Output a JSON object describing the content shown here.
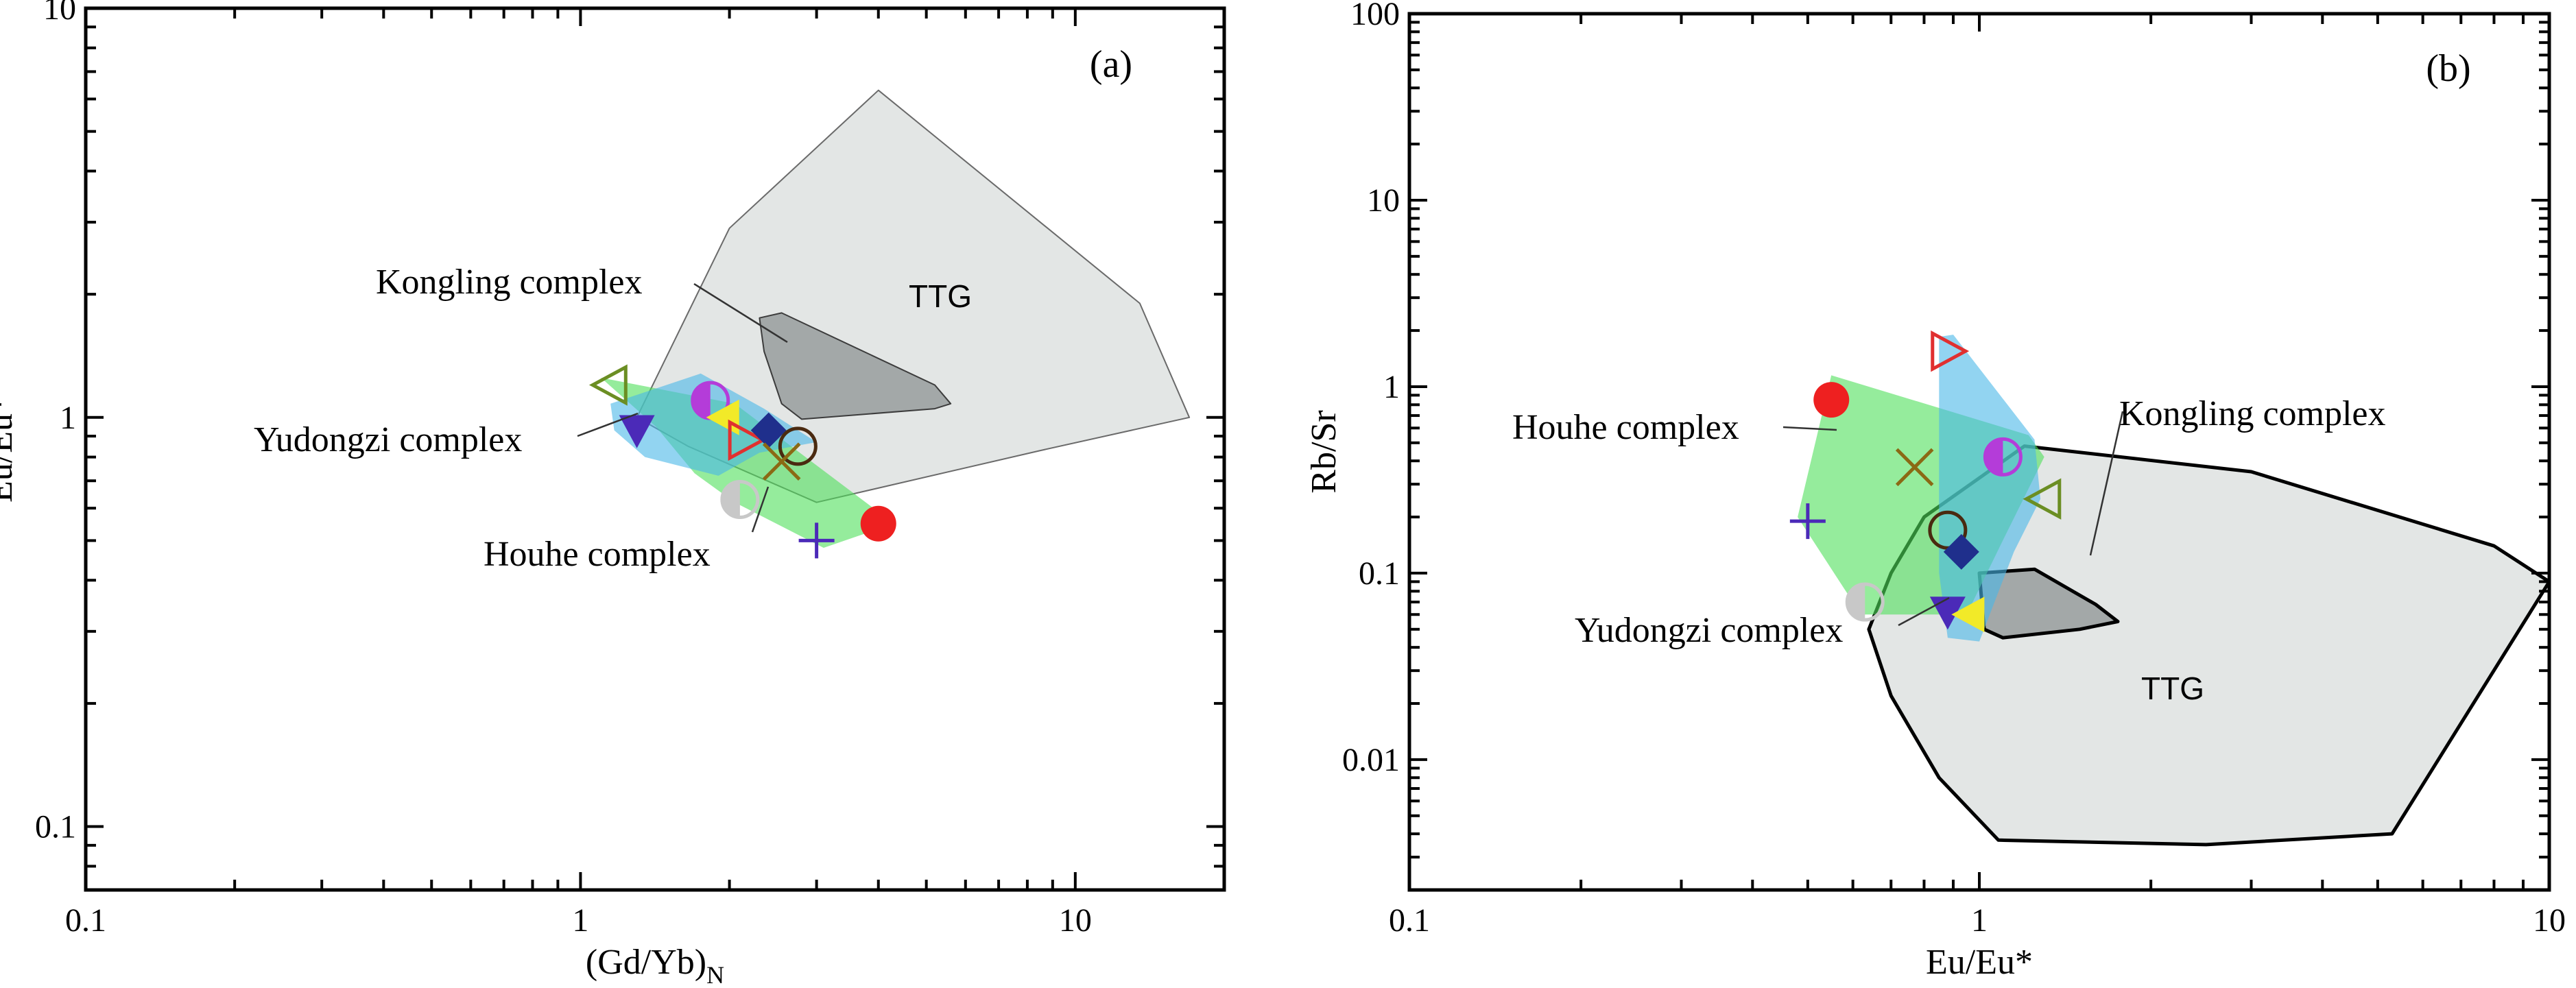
{
  "chart_data": [
    {
      "type": "scatter",
      "panel_label": "(a)",
      "xlabel": "(Gd/Yb)",
      "xlabel_sub": "N",
      "ylabel": "Eu/Eu*",
      "xscale": "log",
      "yscale": "log",
      "xlim": [
        0.1,
        20
      ],
      "ylim": [
        0.07,
        10
      ],
      "x_tick_labels": [
        {
          "value": 0.1,
          "text": "0.1"
        },
        {
          "value": 1,
          "text": "1"
        },
        {
          "value": 10,
          "text": "10"
        }
      ],
      "y_tick_labels": [
        {
          "value": 0.1,
          "text": "0.1"
        },
        {
          "value": 1,
          "text": "1"
        },
        {
          "value": 10,
          "text": "10"
        }
      ],
      "regions": [
        {
          "name": "TTG",
          "label": "TTG",
          "fill": "#e3e6e5",
          "stroke": "#6a6a6a",
          "opacity": 1,
          "points": [
            [
              1.3,
              1.0
            ],
            [
              2.0,
              2.9
            ],
            [
              4.0,
              6.3
            ],
            [
              13.5,
              1.9
            ],
            [
              17,
              1.0
            ],
            [
              8.5,
              0.83
            ],
            [
              3.0,
              0.62
            ],
            [
              1.65,
              0.85
            ]
          ]
        },
        {
          "name": "Kongling complex",
          "label": "Kongling complex",
          "fill": "#a3a8a8",
          "stroke": "#3c3c3c",
          "opacity": 1,
          "points": [
            [
              2.3,
              1.75
            ],
            [
              2.55,
              1.8
            ],
            [
              5.2,
              1.2
            ],
            [
              5.6,
              1.08
            ],
            [
              5.2,
              1.05
            ],
            [
              2.8,
              0.99
            ],
            [
              2.55,
              1.08
            ],
            [
              2.35,
              1.45
            ]
          ]
        },
        {
          "name": "Houhe complex",
          "label": "Houhe complex",
          "fill": "#4fe05a",
          "stroke": "none",
          "opacity": 0.6,
          "points": [
            [
              1.1,
              1.25
            ],
            [
              2.05,
              1.08
            ],
            [
              4.3,
              0.55
            ],
            [
              3.1,
              0.48
            ],
            [
              2.05,
              0.62
            ],
            [
              1.7,
              0.73
            ],
            [
              1.42,
              0.95
            ]
          ]
        },
        {
          "name": "Yudongzi complex",
          "label": "Yudongzi complex",
          "fill": "#4ab8e8",
          "stroke": "none",
          "opacity": 0.6,
          "points": [
            [
              1.15,
              1.08
            ],
            [
              1.75,
              1.28
            ],
            [
              2.35,
              1.05
            ],
            [
              3.0,
              0.87
            ],
            [
              2.3,
              0.82
            ],
            [
              1.9,
              0.72
            ],
            [
              1.35,
              0.8
            ],
            [
              1.17,
              0.93
            ]
          ]
        }
      ],
      "points": [
        {
          "x": 1.15,
          "y": 1.2,
          "marker": "triangle-left-open",
          "color": "#6b8e23"
        },
        {
          "x": 1.83,
          "y": 1.1,
          "marker": "half-circle",
          "color": "#b43cd9"
        },
        {
          "x": 1.95,
          "y": 1.0,
          "marker": "triangle-left",
          "color": "#f2ea28"
        },
        {
          "x": 1.3,
          "y": 0.93,
          "marker": "triangle-down",
          "color": "#4b2ab8"
        },
        {
          "x": 2.15,
          "y": 0.88,
          "marker": "triangle-right-open",
          "color": "#e03030"
        },
        {
          "x": 2.4,
          "y": 0.93,
          "marker": "diamond",
          "color": "#1f2f8c"
        },
        {
          "x": 2.75,
          "y": 0.85,
          "marker": "circle-open",
          "color": "#4a2a10"
        },
        {
          "x": 2.55,
          "y": 0.78,
          "marker": "x",
          "color": "#8b6914"
        },
        {
          "x": 2.1,
          "y": 0.63,
          "marker": "half-circle",
          "color": "#c8c8c8"
        },
        {
          "x": 3.0,
          "y": 0.5,
          "marker": "plus",
          "color": "#4b2ab8"
        },
        {
          "x": 4.0,
          "y": 0.55,
          "marker": "circle",
          "color": "#ee2020"
        }
      ],
      "annotations": [
        {
          "text": "Kongling complex",
          "x": 1.0,
          "y": 1.72
        },
        {
          "text": "Yudongzi complex",
          "x": 0.6,
          "y": 0.94
        },
        {
          "text": "Houhe complex",
          "x": 1.1,
          "y": 0.42
        },
        {
          "text": "TTG",
          "x": 7.2,
          "y": 1.85
        }
      ]
    },
    {
      "type": "scatter",
      "panel_label": "(b)",
      "xlabel": "Eu/Eu*",
      "ylabel": "Rb/Sr",
      "xscale": "log",
      "yscale": "log",
      "xlim": [
        0.1,
        10
      ],
      "ylim": [
        0.002,
        100
      ],
      "x_tick_labels": [
        {
          "value": 0.1,
          "text": "0.1"
        },
        {
          "value": 1,
          "text": "1"
        },
        {
          "value": 10,
          "text": "10"
        }
      ],
      "y_tick_labels": [
        {
          "value": 0.01,
          "text": "0.01"
        },
        {
          "value": 0.1,
          "text": "0.1"
        },
        {
          "value": 1,
          "text": "1"
        },
        {
          "value": 10,
          "text": "10"
        },
        {
          "value": 100,
          "text": "100"
        }
      ],
      "regions": [
        {
          "name": "TTG",
          "label": "TTG",
          "fill": "#e3e6e5",
          "stroke": "#000000",
          "opacity": 1,
          "points": [
            [
              0.7,
              0.1
            ],
            [
              0.8,
              0.2
            ],
            [
              1.2,
              0.48
            ],
            [
              3.0,
              0.35
            ],
            [
              8.0,
              0.14
            ],
            [
              10,
              0.09
            ],
            [
              5.3,
              0.004
            ],
            [
              2.5,
              0.0035
            ],
            [
              1.08,
              0.0037
            ],
            [
              0.85,
              0.008
            ],
            [
              0.7,
              0.022
            ],
            [
              0.64,
              0.05
            ]
          ]
        },
        {
          "name": "Kongling complex",
          "label": "Kongling complex",
          "fill": "#a3a8a8",
          "stroke": "#000000",
          "opacity": 1,
          "points": [
            [
              1.0,
              0.1
            ],
            [
              1.25,
              0.105
            ],
            [
              1.6,
              0.068
            ],
            [
              1.75,
              0.055
            ],
            [
              1.5,
              0.05
            ],
            [
              1.1,
              0.045
            ],
            [
              1.02,
              0.05
            ]
          ]
        },
        {
          "name": "Houhe complex",
          "label": "Houhe complex",
          "fill": "#4fe05a",
          "stroke": "none",
          "opacity": 0.6,
          "points": [
            [
              0.55,
              1.15
            ],
            [
              1.22,
              0.55
            ],
            [
              1.3,
              0.42
            ],
            [
              1.1,
              0.15
            ],
            [
              0.95,
              0.06
            ],
            [
              0.62,
              0.06
            ],
            [
              0.48,
              0.2
            ]
          ]
        },
        {
          "name": "Yudongzi complex",
          "label": "Yudongzi complex",
          "fill": "#4ab8e8",
          "stroke": "none",
          "opacity": 0.6,
          "points": [
            [
              0.85,
              1.85
            ],
            [
              0.9,
              1.9
            ],
            [
              1.25,
              0.52
            ],
            [
              1.28,
              0.25
            ],
            [
              1.15,
              0.13
            ],
            [
              1.0,
              0.043
            ],
            [
              0.88,
              0.045
            ],
            [
              0.85,
              0.1
            ]
          ]
        }
      ],
      "points": [
        {
          "x": 0.55,
          "y": 0.85,
          "marker": "circle",
          "color": "#ee2020"
        },
        {
          "x": 0.88,
          "y": 1.55,
          "marker": "triangle-right-open",
          "color": "#e03030"
        },
        {
          "x": 0.77,
          "y": 0.37,
          "marker": "x",
          "color": "#8b6914"
        },
        {
          "x": 1.1,
          "y": 0.42,
          "marker": "half-circle",
          "color": "#b43cd9"
        },
        {
          "x": 1.3,
          "y": 0.25,
          "marker": "triangle-left-open",
          "color": "#6b8e23"
        },
        {
          "x": 0.5,
          "y": 0.19,
          "marker": "plus",
          "color": "#4b2ab8"
        },
        {
          "x": 0.88,
          "y": 0.17,
          "marker": "circle-open",
          "color": "#4a2a10"
        },
        {
          "x": 0.93,
          "y": 0.13,
          "marker": "diamond",
          "color": "#1f2f8c"
        },
        {
          "x": 0.63,
          "y": 0.07,
          "marker": "half-circle",
          "color": "#c8c8c8"
        },
        {
          "x": 0.88,
          "y": 0.062,
          "marker": "triangle-down",
          "color": "#4b2ab8"
        },
        {
          "x": 0.96,
          "y": 0.06,
          "marker": "triangle-left",
          "color": "#f2ea28"
        }
      ],
      "annotations": [
        {
          "text": "Houhe complex",
          "x": 0.2,
          "y": 0.4
        },
        {
          "text": "Kongling complex",
          "x": 1.8,
          "y": 0.58
        },
        {
          "text": "Yudongzi complex",
          "x": 0.3,
          "y": 0.0275
        },
        {
          "text": "TTG",
          "x": 3.0,
          "y": 0.0095
        }
      ]
    }
  ]
}
